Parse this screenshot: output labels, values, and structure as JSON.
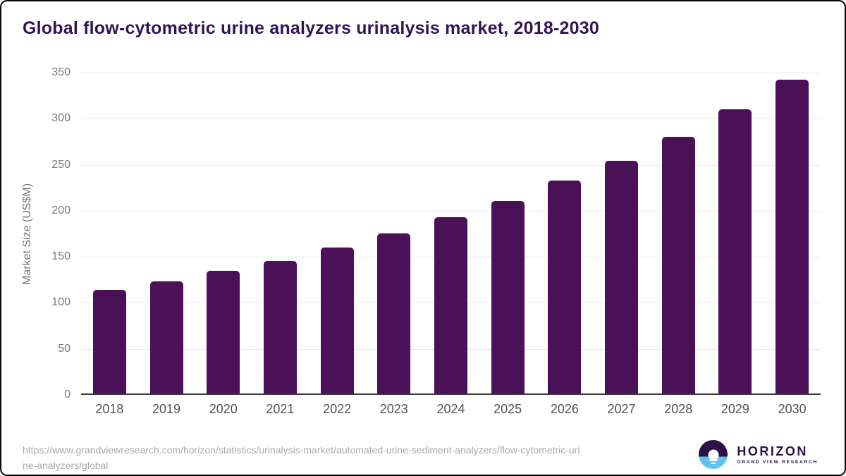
{
  "page": {
    "title": "Global flow-cytometric urine analyzers urinalysis market, 2018-2030"
  },
  "chart_data": {
    "type": "bar",
    "title": "Global flow-cytometric urine analyzers urinalysis market, 2018-2030",
    "categories": [
      "2018",
      "2019",
      "2020",
      "2021",
      "2022",
      "2023",
      "2024",
      "2025",
      "2026",
      "2027",
      "2028",
      "2029",
      "2030"
    ],
    "values": [
      113,
      122,
      134,
      145,
      159,
      175,
      192,
      210,
      232,
      254,
      280,
      310,
      342
    ],
    "xlabel": "",
    "ylabel": "Market Size (US$M)",
    "ylim": [
      0,
      350
    ],
    "yticks": [
      0,
      50,
      100,
      150,
      200,
      250,
      300,
      350
    ],
    "grid": true,
    "legend_position": "none",
    "bar_color": "#4a1159"
  },
  "footer": {
    "source_url_lines": [
      "https://www.grandviewresearch.com/horizon/statistics/urinalysis-market/automated-urine-sediment-analyzers/flow-cytometric-uri",
      "ne-analyzers/global"
    ],
    "logo_title": "HORIZON",
    "logo_subtitle": "GRAND VIEW RESEARCH"
  },
  "colors": {
    "bar": "#4a1159",
    "title_text": "#341356",
    "ytick_text": "#7b7b7b",
    "xtick_text": "#525252",
    "gridline": "#e7e7e7",
    "axis_line": "#3a3a3a",
    "url_text": "#a9a9a9",
    "logo_purple": "#2c1248",
    "logo_blue": "#5ec4ee"
  }
}
